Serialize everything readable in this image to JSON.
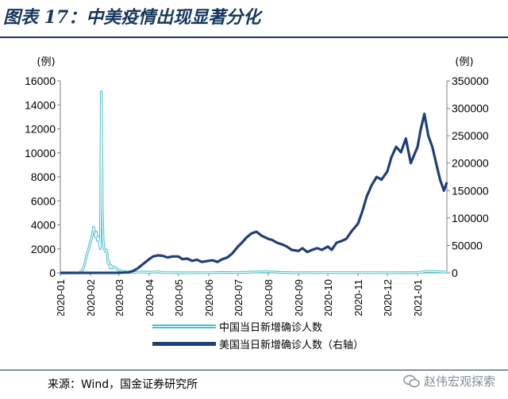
{
  "title": "图表 17：中美疫情出现显著分化",
  "source": "来源：Wind，国金证券研究所",
  "watermark": "赵伟宏观探索",
  "chart_data": {
    "type": "line",
    "left_axis": {
      "unit": "(例)",
      "ylim": [
        0,
        16000
      ],
      "ticks": [
        0,
        2000,
        4000,
        6000,
        8000,
        10000,
        12000,
        14000,
        16000
      ]
    },
    "right_axis": {
      "unit": "(例)",
      "ylim": [
        0,
        350000
      ],
      "ticks": [
        0,
        50000,
        100000,
        150000,
        200000,
        250000,
        300000,
        350000
      ]
    },
    "x_tick_labels": [
      "2020-01",
      "2020-02",
      "2020-03",
      "2020-04",
      "2020-05",
      "2020-06",
      "2020-07",
      "2020-08",
      "2020-09",
      "2020-10",
      "2020-11",
      "2020-12",
      "2021-01"
    ],
    "x_range": [
      "2020-01-01",
      "2021-01-31"
    ],
    "grid": false,
    "legend_position": "bottom",
    "series": [
      {
        "name": "中国当日新增确诊人数",
        "axis": "left",
        "color": "#4fc0d0",
        "style": "double-line",
        "x": [
          "2020-01-01",
          "2020-01-20",
          "2020-01-22",
          "2020-01-24",
          "2020-01-26",
          "2020-01-28",
          "2020-01-30",
          "2020-02-01",
          "2020-02-03",
          "2020-02-04",
          "2020-02-05",
          "2020-02-06",
          "2020-02-07",
          "2020-02-08",
          "2020-02-09",
          "2020-02-10",
          "2020-02-11",
          "2020-02-12",
          "2020-02-13",
          "2020-02-14",
          "2020-02-15",
          "2020-02-16",
          "2020-02-17",
          "2020-02-18",
          "2020-02-19",
          "2020-02-20",
          "2020-02-21",
          "2020-02-22",
          "2020-02-23",
          "2020-02-25",
          "2020-02-27",
          "2020-03-01",
          "2020-03-05",
          "2020-03-10",
          "2020-03-15",
          "2020-03-20",
          "2020-03-25",
          "2020-04-01",
          "2020-04-10",
          "2020-04-15",
          "2020-04-20",
          "2020-05-01",
          "2020-06-01",
          "2020-06-15",
          "2020-07-01",
          "2020-07-30",
          "2020-08-15",
          "2020-09-01",
          "2020-10-01",
          "2020-11-01",
          "2020-12-01",
          "2021-01-01",
          "2021-01-10",
          "2021-01-20",
          "2021-01-31"
        ],
        "values": [
          0,
          0,
          100,
          250,
          700,
          1500,
          2000,
          2600,
          3200,
          3800,
          3500,
          3000,
          3400,
          2700,
          3000,
          2500,
          2000,
          15100,
          5100,
          2600,
          2000,
          1800,
          1900,
          1700,
          800,
          900,
          400,
          600,
          400,
          500,
          400,
          200,
          150,
          40,
          20,
          50,
          70,
          40,
          90,
          20,
          20,
          5,
          10,
          30,
          20,
          100,
          30,
          15,
          20,
          20,
          15,
          20,
          120,
          100,
          60
        ]
      },
      {
        "name": "美国当日新增确诊人数（右轴）",
        "axis": "right",
        "color": "#1f3f7a",
        "x": [
          "2020-01-01",
          "2020-03-01",
          "2020-03-10",
          "2020-03-15",
          "2020-03-20",
          "2020-03-25",
          "2020-04-01",
          "2020-04-05",
          "2020-04-10",
          "2020-04-15",
          "2020-04-20",
          "2020-04-25",
          "2020-05-01",
          "2020-05-05",
          "2020-05-10",
          "2020-05-15",
          "2020-05-20",
          "2020-05-25",
          "2020-06-01",
          "2020-06-05",
          "2020-06-10",
          "2020-06-15",
          "2020-06-20",
          "2020-06-25",
          "2020-07-01",
          "2020-07-05",
          "2020-07-10",
          "2020-07-15",
          "2020-07-20",
          "2020-07-25",
          "2020-08-01",
          "2020-08-05",
          "2020-08-10",
          "2020-08-15",
          "2020-08-20",
          "2020-08-25",
          "2020-09-01",
          "2020-09-05",
          "2020-09-10",
          "2020-09-15",
          "2020-09-20",
          "2020-09-25",
          "2020-10-01",
          "2020-10-05",
          "2020-10-10",
          "2020-10-15",
          "2020-10-20",
          "2020-10-25",
          "2020-11-01",
          "2020-11-05",
          "2020-11-10",
          "2020-11-15",
          "2020-11-20",
          "2020-11-25",
          "2020-12-01",
          "2020-12-05",
          "2020-12-10",
          "2020-12-15",
          "2020-12-20",
          "2020-12-25",
          "2021-01-01",
          "2021-01-04",
          "2021-01-08",
          "2021-01-12",
          "2021-01-16",
          "2021-01-20",
          "2021-01-24",
          "2021-01-28",
          "2021-01-31"
        ],
        "values": [
          0,
          100,
          1000,
          3000,
          8000,
          15000,
          25000,
          30000,
          32000,
          31000,
          28000,
          30000,
          30000,
          25000,
          26000,
          22000,
          24000,
          20000,
          22000,
          23000,
          20000,
          25000,
          28000,
          35000,
          48000,
          55000,
          65000,
          72000,
          75000,
          68000,
          62000,
          60000,
          55000,
          52000,
          48000,
          42000,
          40000,
          45000,
          38000,
          42000,
          45000,
          42000,
          48000,
          42000,
          55000,
          58000,
          62000,
          75000,
          90000,
          110000,
          140000,
          160000,
          175000,
          170000,
          185000,
          210000,
          230000,
          220000,
          245000,
          200000,
          230000,
          260000,
          290000,
          250000,
          230000,
          200000,
          170000,
          150000,
          165000
        ]
      }
    ]
  }
}
